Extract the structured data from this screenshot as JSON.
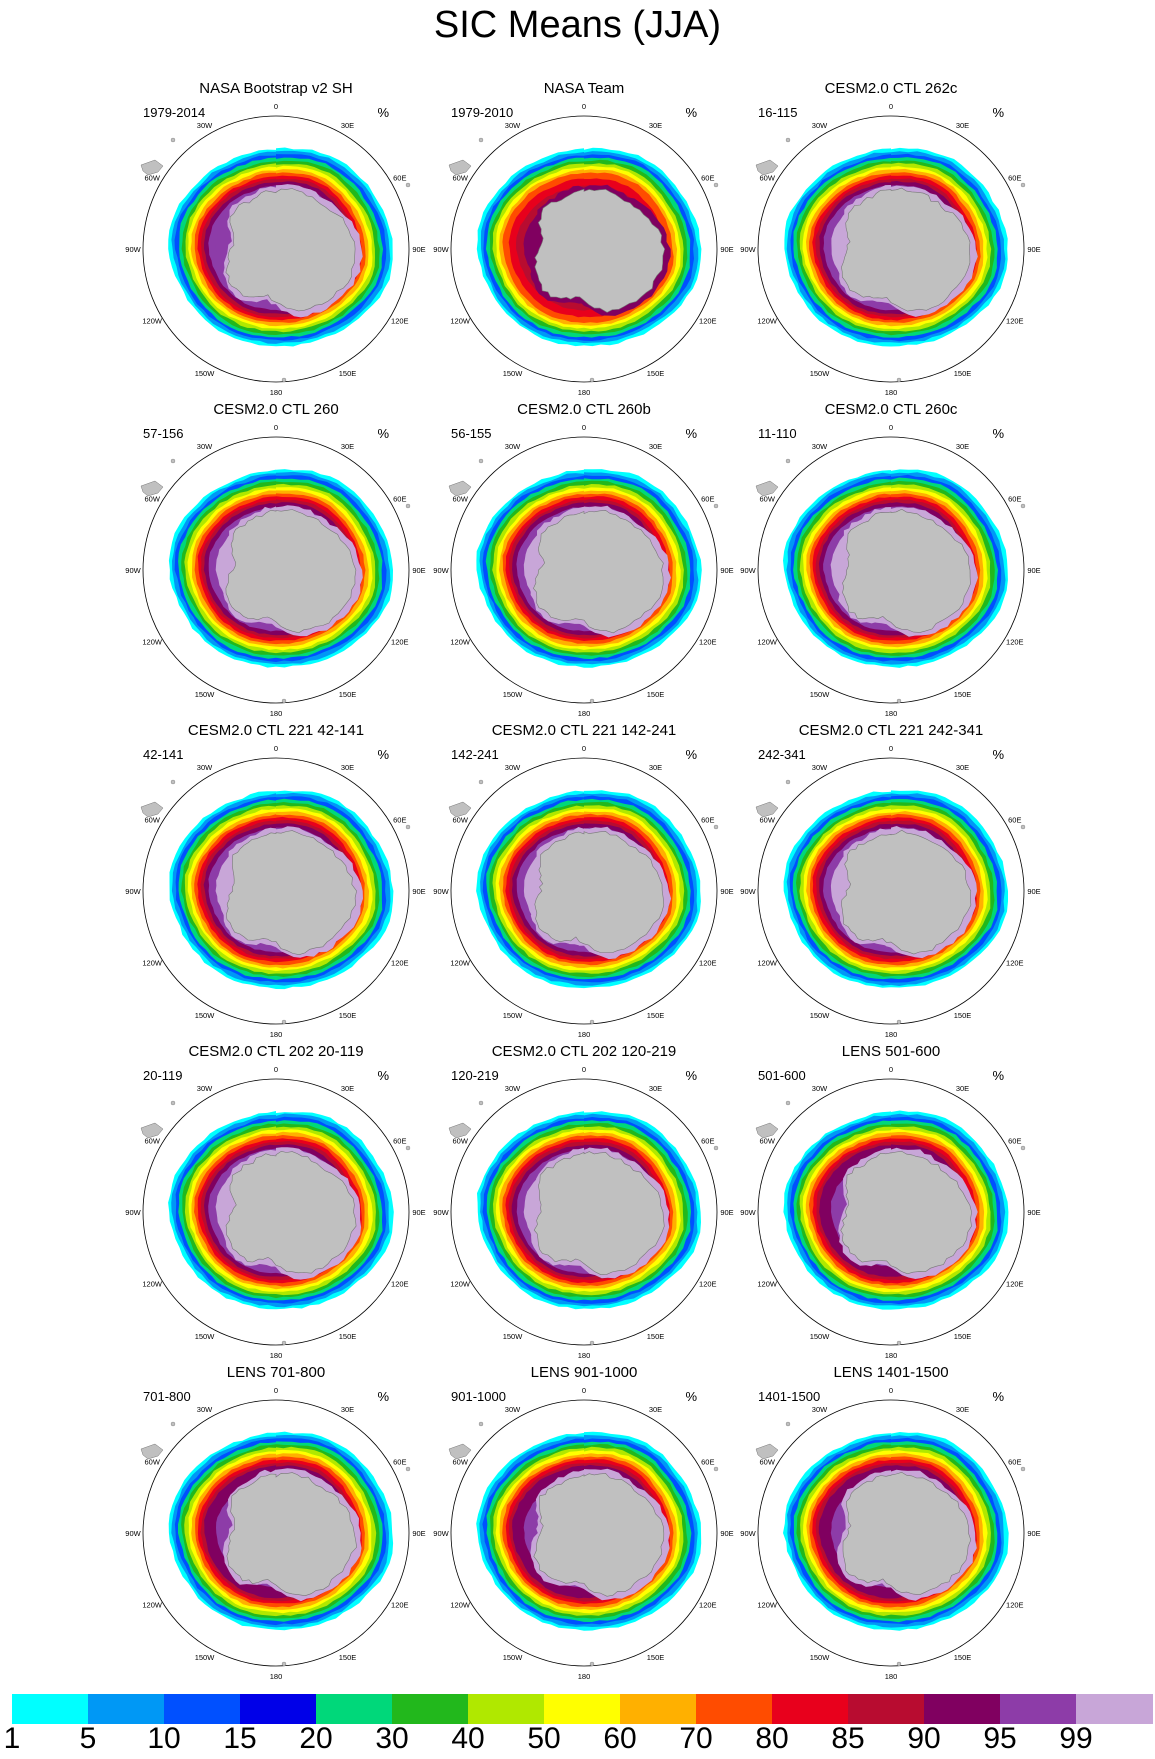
{
  "title": "SIC Means (JJA)",
  "units": "%",
  "longitude_labels": [
    "0",
    "30E",
    "60E",
    "90E",
    "120E",
    "150E",
    "180",
    "150W",
    "120W",
    "90W",
    "60W",
    "30W"
  ],
  "panels": [
    {
      "title": "NASA Bootstrap v2 SH",
      "period": "1979-2014",
      "style": "obs"
    },
    {
      "title": "NASA Team",
      "period": "1979-2010",
      "style": "team"
    },
    {
      "title": "CESM2.0 CTL 262c",
      "period": "16-115",
      "style": "model"
    },
    {
      "title": "CESM2.0 CTL 260",
      "period": "57-156",
      "style": "model"
    },
    {
      "title": "CESM2.0 CTL 260b",
      "period": "56-155",
      "style": "model"
    },
    {
      "title": "CESM2.0 CTL 260c",
      "period": "11-110",
      "style": "model"
    },
    {
      "title": "CESM2.0 CTL 221 42-141",
      "period": "42-141",
      "style": "model"
    },
    {
      "title": "CESM2.0 CTL 221 142-241",
      "period": "142-241",
      "style": "model"
    },
    {
      "title": "CESM2.0 CTL 221 242-341",
      "period": "242-341",
      "style": "model"
    },
    {
      "title": "CESM2.0 CTL 202 20-119",
      "period": "20-119",
      "style": "model"
    },
    {
      "title": "CESM2.0 CTL 202 120-219",
      "period": "120-219",
      "style": "model"
    },
    {
      "title": "LENS 501-600",
      "period": "501-600",
      "style": "lens"
    },
    {
      "title": "LENS 701-800",
      "period": "701-800",
      "style": "lens"
    },
    {
      "title": "LENS 901-1000",
      "period": "901-1000",
      "style": "lens"
    },
    {
      "title": "LENS 1401-1500",
      "period": "1401-1500",
      "style": "lens"
    }
  ],
  "colorbar": {
    "colors": [
      "#00ffff",
      "#0098f5",
      "#0050ff",
      "#0000e8",
      "#00d87a",
      "#22b81c",
      "#b0e800",
      "#ffff00",
      "#ffb000",
      "#ff4c00",
      "#e8001c",
      "#b80c30",
      "#800060",
      "#8d3ca8",
      "#c8a6d8"
    ],
    "labels": [
      "1",
      "5",
      "10",
      "15",
      "20",
      "30",
      "40",
      "50",
      "60",
      "70",
      "80",
      "85",
      "90",
      "95",
      "99"
    ]
  },
  "palette": {
    "land": "#c0c0c0",
    "land_outline": "#777777",
    "ocean": "#ffffff"
  }
}
